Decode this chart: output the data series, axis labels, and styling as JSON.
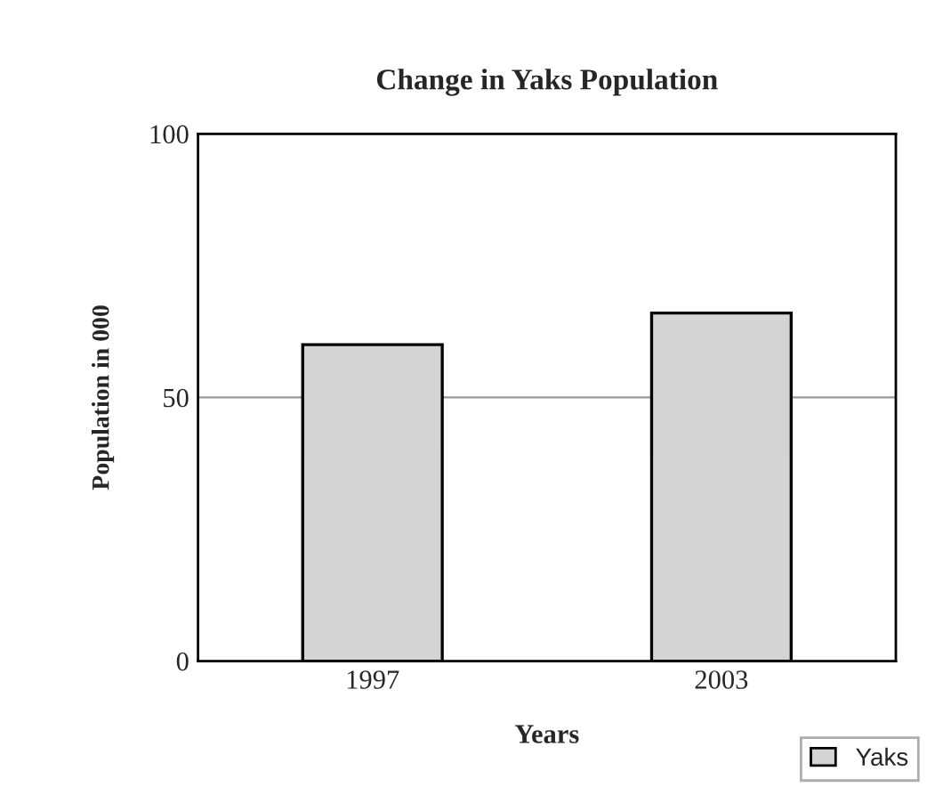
{
  "chart_data": {
    "type": "bar",
    "title": "Change in Yaks Population",
    "xlabel": "Years",
    "ylabel": "Population in 000",
    "categories": [
      "1997",
      "2003"
    ],
    "series": [
      {
        "name": "Yaks",
        "color": "#d4d4d4",
        "values": [
          60,
          66
        ]
      }
    ],
    "ylim": [
      0,
      100
    ],
    "yticks": [
      0,
      50,
      100
    ],
    "grid": "y",
    "legend": "bottom right"
  }
}
